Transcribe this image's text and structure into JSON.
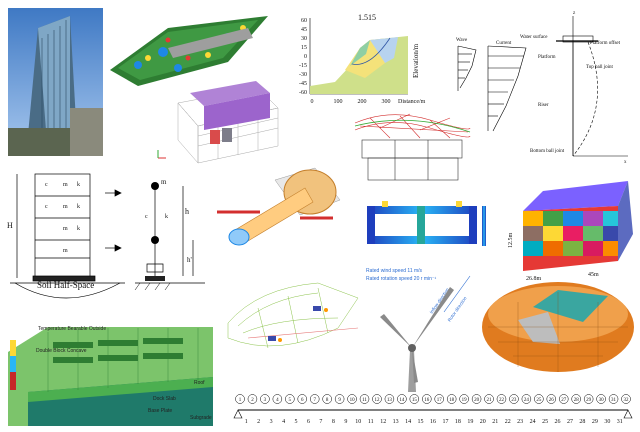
{
  "slope": {
    "factor": "1.515",
    "y_ticks": [
      "60",
      "45",
      "30",
      "15",
      "0",
      "-15",
      "-30",
      "-45",
      "-60"
    ],
    "x_ticks": [
      "0",
      "100",
      "200",
      "300"
    ],
    "x_label": "Distance/m",
    "y_label": "Elevation/m"
  },
  "offshore": {
    "wave": "Wave",
    "current": "Current",
    "water_surface": "Water surface",
    "platform": "Platform",
    "platform_offset": "Platform offset",
    "top_ball_joint": "Top ball joint",
    "riser": "Riser",
    "bottom_ball_joint": "Bottom ball joint",
    "axis_z": "z",
    "axis_x": "x"
  },
  "ssi": {
    "H": "H",
    "h": "h",
    "h_prime": "h'",
    "soil": "Soil Half-Space",
    "m_n": "m",
    "m_top": "m",
    "k_lbl": "k",
    "c_lbl": "c"
  },
  "grid_box": {
    "dim_left": "12.5m",
    "dim_bottom1": "26.8m",
    "dim_bottom2": "45m"
  },
  "fe_ship": {
    "legend1": "Temperature Bearable Outside",
    "legend2": "Double Block Concave",
    "label1": "Dock Slab",
    "label2": "Base Plate",
    "label3": "Roof",
    "label4": "Subgrade"
  },
  "turbine": {
    "wind": "Rated wind speed 11 m/s",
    "rotation": "Rated rotation speed 20 r min⁻¹",
    "arrow1": "Inflow direction",
    "arrow2": "Rotor direction"
  },
  "beam": {
    "top_nums": [
      "1",
      "2",
      "3",
      "4",
      "5",
      "6",
      "7",
      "8",
      "9",
      "10",
      "11",
      "12",
      "13",
      "14",
      "15",
      "16",
      "17",
      "18",
      "19",
      "20",
      "21",
      "22",
      "23",
      "24",
      "25",
      "26",
      "27",
      "28",
      "29",
      "30",
      "31",
      "32"
    ],
    "bottom_nums": [
      "1",
      "2",
      "3",
      "4",
      "5",
      "6",
      "7",
      "8",
      "9",
      "10",
      "11",
      "12",
      "13",
      "14",
      "15",
      "16",
      "17",
      "18",
      "19",
      "20",
      "21",
      "22",
      "23",
      "24",
      "25",
      "26",
      "27",
      "28",
      "29",
      "30",
      "31"
    ]
  },
  "colors": {
    "sky": "#6a9fd6",
    "mesh_green": "#4caf50",
    "orange_mesh": "#e07b1f",
    "teal": "#3aa6a0"
  }
}
